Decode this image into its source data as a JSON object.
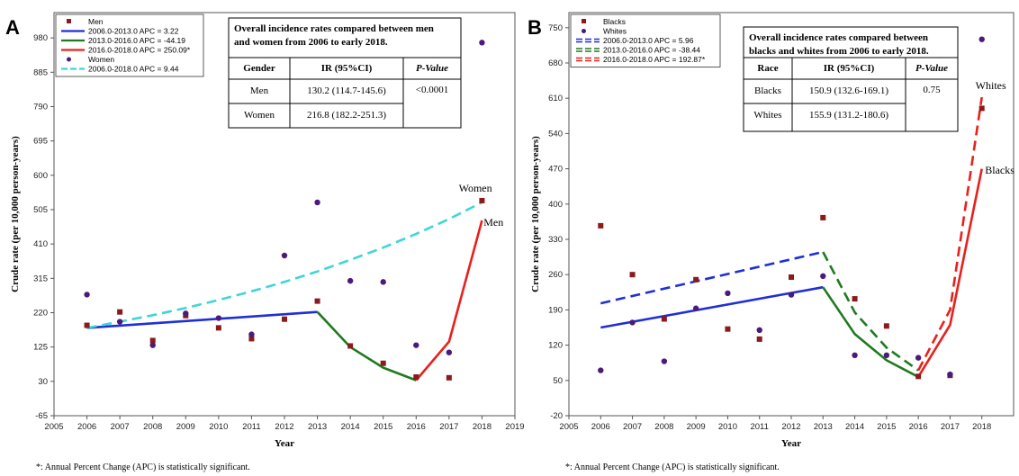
{
  "colors": {
    "men_marker": "#8b1a1a",
    "women_marker": "#4b1a7a",
    "blue": "#1f2fd6",
    "green": "#1f7a1f",
    "red": "#e8201c",
    "cyan": "#3fd6d6"
  },
  "chart_data": [
    {
      "panel": "A",
      "type": "scatter",
      "xlabel": "Year",
      "ylabel": "Crude rate (per 10,000 person-years)",
      "xlim": [
        2005,
        2019
      ],
      "ylim": [
        -65,
        1050
      ],
      "xticks": [
        2005,
        2006,
        2007,
        2008,
        2009,
        2010,
        2011,
        2012,
        2013,
        2014,
        2015,
        2016,
        2017,
        2018,
        2019
      ],
      "yticks": [
        -65,
        30,
        125,
        220,
        315,
        410,
        505,
        600,
        695,
        790,
        885,
        980
      ],
      "legend": {
        "placement": "top-left",
        "entries": [
          {
            "label": "Men",
            "kind": "square",
            "color": "#8b1a1a"
          },
          {
            "label": "2006.0-2013.0 APC =  3.22",
            "kind": "line",
            "color": "#1f2fd6"
          },
          {
            "label": "2013.0-2016.0 APC = -44.19",
            "kind": "line",
            "color": "#1f7a1f"
          },
          {
            "label": "2016.0-2018.0 APC = 250.09*",
            "kind": "line",
            "color": "#e8201c"
          },
          {
            "label": "Women",
            "kind": "dot",
            "color": "#4b1a7a"
          },
          {
            "label": "2006.0-2018.0 APC = 9.44",
            "kind": "dash",
            "color": "#3fd6d6"
          }
        ]
      },
      "series": [
        {
          "name": "Men",
          "kind": "square",
          "color": "#8b1a1a",
          "x": [
            2006,
            2007,
            2008,
            2009,
            2010,
            2011,
            2012,
            2013,
            2014,
            2015,
            2016,
            2017,
            2018
          ],
          "y": [
            185,
            222,
            143,
            212,
            178,
            148,
            202,
            252,
            128,
            80,
            42,
            40,
            530
          ]
        },
        {
          "name": "Women",
          "kind": "dot",
          "color": "#4b1a7a",
          "x": [
            2006,
            2007,
            2008,
            2009,
            2010,
            2011,
            2012,
            2013,
            2014,
            2015,
            2016,
            2017,
            2018
          ],
          "y": [
            270,
            195,
            130,
            218,
            205,
            160,
            378,
            525,
            308,
            305,
            130,
            110,
            967
          ]
        }
      ],
      "fits": [
        {
          "kind": "line",
          "color": "#1f2fd6",
          "x": [
            2006,
            2013
          ],
          "y": [
            178,
            222
          ]
        },
        {
          "kind": "line",
          "color": "#1f7a1f",
          "x": [
            2013,
            2014,
            2015,
            2016
          ],
          "y": [
            222,
            125,
            68,
            33
          ]
        },
        {
          "kind": "line",
          "color": "#e8201c",
          "x": [
            2016,
            2017,
            2018
          ],
          "y": [
            33,
            140,
            475
          ]
        },
        {
          "kind": "dash",
          "color": "#3fd6d6",
          "x": [
            2006,
            2007,
            2008,
            2009,
            2010,
            2011,
            2012,
            2013,
            2014,
            2015,
            2016,
            2017,
            2018
          ],
          "y": [
            178,
            195,
            213,
            233,
            255,
            279,
            305,
            334,
            366,
            400,
            438,
            479,
            525
          ]
        }
      ],
      "annotations": [
        {
          "text": "Women",
          "x": 2017.8,
          "y": 555,
          "anchor": "middle"
        },
        {
          "text": "Men",
          "x": 2018.05,
          "y": 460,
          "anchor": "start"
        }
      ],
      "table": {
        "title_lines": [
          "Overall incidence rates compared between men",
          "and women from 2006 to early 2018."
        ],
        "headers": [
          "Gender",
          "IR (95%CI)",
          "P-Value"
        ],
        "rows": [
          [
            "Men",
            "130.2 (114.7-145.6)",
            "<0.0001"
          ],
          [
            "Women",
            "216.8 (182.2-251.3)",
            ""
          ]
        ]
      },
      "footnote": "*: Annual Percent Change (APC) is statistically  significant."
    },
    {
      "panel": "B",
      "type": "scatter",
      "xlabel": "Year",
      "ylabel": "Crude rate (per 10,000 person-years)",
      "xlim": [
        2005,
        2019
      ],
      "ylim": [
        -20,
        780
      ],
      "xticks": [
        2005,
        2006,
        2007,
        2008,
        2009,
        2010,
        2011,
        2012,
        2013,
        2014,
        2015,
        2016,
        2017,
        2018
      ],
      "yticks": [
        -20,
        50,
        120,
        190,
        260,
        330,
        400,
        470,
        540,
        610,
        680,
        750
      ],
      "legend": {
        "placement": "top-left",
        "entries": [
          {
            "label": "Blacks",
            "kind": "square",
            "color": "#8b1a1a"
          },
          {
            "label": "Whites",
            "kind": "dot",
            "color": "#4b1a7a"
          },
          {
            "label": "2006.0-2013.0 APC =  5.96",
            "kind": "dash2",
            "color": "#1f2fd6"
          },
          {
            "label": "2013.0-2016.0 APC = -38.44",
            "kind": "dash2",
            "color": "#1f7a1f"
          },
          {
            "label": "2016.0-2018.0 APC = 192.87*",
            "kind": "dash2",
            "color": "#e8201c"
          }
        ]
      },
      "series": [
        {
          "name": "Blacks",
          "kind": "square",
          "color": "#8b1a1a",
          "x": [
            2006,
            2007,
            2008,
            2009,
            2010,
            2011,
            2012,
            2013,
            2014,
            2015,
            2016,
            2017,
            2018
          ],
          "y": [
            357,
            260,
            172,
            250,
            152,
            132,
            255,
            373,
            212,
            158,
            58,
            60,
            590
          ]
        },
        {
          "name": "Whites",
          "kind": "dot",
          "color": "#4b1a7a",
          "x": [
            2006,
            2007,
            2008,
            2009,
            2010,
            2011,
            2012,
            2013,
            2014,
            2015,
            2016,
            2017,
            2018
          ],
          "y": [
            70,
            165,
            88,
            193,
            223,
            150,
            220,
            257,
            100,
            100,
            95,
            62,
            727
          ]
        }
      ],
      "fits": [
        {
          "kind": "line",
          "color": "#1f2fd6",
          "x": [
            2006,
            2013
          ],
          "y": [
            155,
            235
          ]
        },
        {
          "kind": "line",
          "color": "#1f7a1f",
          "x": [
            2013,
            2014,
            2015,
            2016
          ],
          "y": [
            235,
            142,
            90,
            57
          ]
        },
        {
          "kind": "line",
          "color": "#e8201c",
          "x": [
            2016,
            2017,
            2018
          ],
          "y": [
            57,
            160,
            470
          ]
        },
        {
          "kind": "dash",
          "color": "#1f2fd6",
          "x": [
            2006,
            2013
          ],
          "y": [
            203,
            305
          ]
        },
        {
          "kind": "dash",
          "color": "#1f7a1f",
          "x": [
            2013,
            2014,
            2015,
            2016
          ],
          "y": [
            305,
            185,
            115,
            70
          ]
        },
        {
          "kind": "dash",
          "color": "#e8201c",
          "x": [
            2016,
            2017,
            2018
          ],
          "y": [
            70,
            190,
            612
          ]
        }
      ],
      "annotations": [
        {
          "text": "Whites",
          "x": 2017.8,
          "y": 628,
          "anchor": "start"
        },
        {
          "text": "Blacks",
          "x": 2018.1,
          "y": 460,
          "anchor": "start"
        }
      ],
      "table": {
        "title_lines": [
          "Overall incidence rates compared between",
          "blacks and whites from 2006 to early 2018."
        ],
        "headers": [
          "Race",
          "IR (95%CI)",
          "P-Value"
        ],
        "rows": [
          [
            "Blacks",
            "150.9 (132.6-169.1)",
            "0.75"
          ],
          [
            "Whites",
            "155.9 (131.2-180.6)",
            ""
          ]
        ]
      },
      "footnote": "*: Annual Percent Change (APC) is statistically  significant."
    }
  ]
}
